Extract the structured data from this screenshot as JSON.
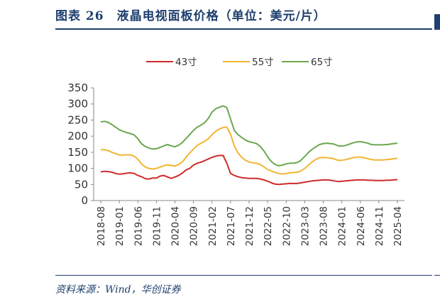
{
  "title": "图表 26　液晶电视面板价格（单位：美元/片）",
  "source": "资料来源：Wind，华创证券",
  "colors": {
    "title": "#1f3f6e",
    "series_43": "#d12a2a",
    "series_55": "#f2b530",
    "series_65": "#6aa84f",
    "axis": "#8a8a8a"
  },
  "chart_data": {
    "type": "line",
    "title": "液晶电视面板价格（单位：美元/片）",
    "xlabel": "",
    "ylabel": "",
    "ylim": [
      0,
      350
    ],
    "yticks": [
      0,
      50,
      100,
      150,
      200,
      250,
      300,
      350
    ],
    "xtick_labels": [
      "2018-08",
      "2019-01",
      "2019-06",
      "2019-11",
      "2020-04",
      "2020-09",
      "2021-02",
      "2021-07",
      "2021-12",
      "2022-05",
      "2022-10",
      "2023-03",
      "2023-08",
      "2024-01",
      "2024-06",
      "2024-11",
      "2025-04"
    ],
    "x_start": "2018-08",
    "x_end": "2025-04",
    "legend_position": "top-center",
    "series": [
      {
        "name": "43寸",
        "color": "#d12a2a",
        "values": [
          89,
          91,
          90,
          88,
          84,
          82,
          83,
          85,
          86,
          84,
          78,
          74,
          68,
          67,
          70,
          70,
          76,
          78,
          73,
          69,
          73,
          78,
          85,
          95,
          100,
          110,
          116,
          119,
          124,
          129,
          134,
          138,
          140,
          140,
          116,
          84,
          78,
          74,
          71,
          70,
          69,
          69,
          69,
          67,
          64,
          60,
          55,
          51,
          50,
          51,
          52,
          53,
          53,
          53,
          55,
          57,
          59,
          61,
          62,
          63,
          64,
          64,
          63,
          61,
          59,
          60,
          61,
          62,
          63,
          64,
          64,
          64,
          63,
          63,
          62,
          62,
          62,
          63,
          63,
          64,
          65
        ]
      },
      {
        "name": "55寸",
        "color": "#f2b530",
        "values": [
          158,
          158,
          155,
          150,
          146,
          142,
          141,
          142,
          142,
          138,
          128,
          114,
          104,
          100,
          98,
          100,
          104,
          108,
          111,
          109,
          107,
          112,
          120,
          135,
          148,
          160,
          171,
          178,
          184,
          192,
          205,
          215,
          222,
          227,
          228,
          206,
          170,
          148,
          134,
          125,
          120,
          117,
          116,
          112,
          105,
          96,
          92,
          87,
          84,
          82,
          84,
          86,
          87,
          88,
          92,
          100,
          110,
          120,
          128,
          133,
          134,
          133,
          132,
          129,
          125,
          125,
          127,
          130,
          133,
          135,
          135,
          133,
          130,
          127,
          126,
          126,
          126,
          127,
          128,
          130,
          131
        ]
      },
      {
        "name": "65寸",
        "color": "#6aa84f",
        "values": [
          244,
          246,
          243,
          236,
          228,
          220,
          215,
          211,
          208,
          204,
          192,
          176,
          168,
          163,
          160,
          161,
          165,
          170,
          174,
          170,
          167,
          172,
          180,
          193,
          205,
          218,
          228,
          234,
          242,
          255,
          275,
          285,
          290,
          294,
          289,
          253,
          218,
          205,
          196,
          188,
          183,
          180,
          177,
          168,
          154,
          136,
          121,
          112,
          108,
          110,
          114,
          116,
          116,
          118,
          125,
          137,
          149,
          159,
          167,
          174,
          177,
          178,
          177,
          175,
          170,
          169,
          171,
          175,
          179,
          182,
          183,
          181,
          178,
          174,
          173,
          173,
          173,
          174,
          175,
          177,
          178
        ]
      }
    ]
  }
}
